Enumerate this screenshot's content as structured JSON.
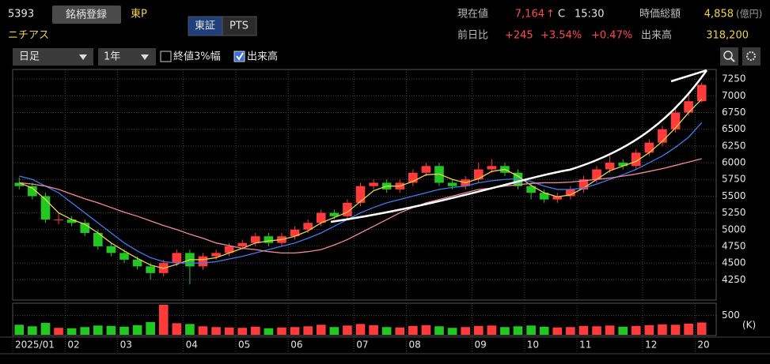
{
  "header": {
    "code": "5393",
    "register": "銘柄登録",
    "market": "東P",
    "name": "ニチアス",
    "exchange": "東証",
    "pts": "PTS",
    "price_label": "現在値",
    "price": "7,164",
    "arrow": "↑",
    "close_mark": "C",
    "time": "15:30",
    "cap_label": "時価総額",
    "cap": "4,858",
    "cap_unit": "(億円)",
    "change_label": "前日比",
    "change": "+245",
    "change_pct": "+3.54%",
    "change_pct2": "+0.47%",
    "volume_label": "出来高",
    "volume": "318,200"
  },
  "toolbar": {
    "period": "日足",
    "range": "1年",
    "band": "終値3%幅",
    "show_volume": "出来高"
  },
  "chart_data": {
    "type": "candlestick",
    "categories": [
      "2025/01",
      null,
      null,
      null,
      "02",
      null,
      null,
      null,
      "03",
      null,
      null,
      null,
      null,
      "04",
      null,
      null,
      null,
      "05",
      null,
      null,
      null,
      "06",
      null,
      null,
      null,
      null,
      "07",
      null,
      null,
      null,
      "08",
      null,
      null,
      null,
      null,
      "09",
      null,
      null,
      null,
      "10",
      null,
      null,
      null,
      "11",
      null,
      null,
      null,
      null,
      "12",
      null,
      null,
      null,
      "20"
    ],
    "candles": {
      "open": [
        5700,
        5650,
        5500,
        5150,
        5150,
        5100,
        4950,
        4750,
        4650,
        4550,
        4450,
        4350,
        4500,
        4650,
        4450,
        4600,
        4650,
        4750,
        4800,
        4900,
        4800,
        4900,
        5000,
        5100,
        5250,
        5200,
        5400,
        5650,
        5700,
        5600,
        5700,
        5850,
        5950,
        5700,
        5650,
        5750,
        5900,
        5950,
        5850,
        5650,
        5550,
        5450,
        5500,
        5600,
        5750,
        5900,
        6000,
        5950,
        6150,
        6300,
        6500,
        6750,
        6919
      ],
      "high": [
        5780,
        5700,
        5550,
        5250,
        5200,
        5150,
        5000,
        4800,
        4700,
        4600,
        4500,
        4550,
        4700,
        4700,
        4650,
        4700,
        4800,
        4850,
        4950,
        4950,
        4950,
        5050,
        5150,
        5300,
        5300,
        5450,
        5700,
        5750,
        5750,
        5750,
        5900,
        6000,
        6000,
        5750,
        5800,
        6000,
        6050,
        6000,
        5900,
        5700,
        5600,
        5550,
        5650,
        5800,
        5950,
        6100,
        6050,
        6200,
        6350,
        6550,
        6800,
        7050,
        7200
      ],
      "low": [
        5600,
        5450,
        5100,
        5080,
        5050,
        4900,
        4700,
        4600,
        4500,
        4400,
        4250,
        4300,
        4450,
        4180,
        4400,
        4550,
        4600,
        4700,
        4750,
        4750,
        4750,
        4850,
        4950,
        5050,
        5150,
        5150,
        5350,
        5600,
        5550,
        5550,
        5650,
        5800,
        5650,
        5600,
        5600,
        5700,
        5850,
        5800,
        5600,
        5450,
        5400,
        5400,
        5450,
        5550,
        5700,
        5850,
        5900,
        5900,
        6100,
        6250,
        6450,
        6700,
        6900
      ],
      "close": [
        5650,
        5500,
        5150,
        5150,
        5100,
        4950,
        4750,
        4650,
        4550,
        4450,
        4350,
        4500,
        4650,
        4450,
        4600,
        4650,
        4750,
        4800,
        4900,
        4800,
        4900,
        5000,
        5100,
        5250,
        5200,
        5400,
        5650,
        5700,
        5600,
        5700,
        5850,
        5950,
        5700,
        5650,
        5750,
        5900,
        5950,
        5850,
        5650,
        5550,
        5450,
        5500,
        5600,
        5750,
        5900,
        6000,
        5950,
        6150,
        6300,
        6500,
        6750,
        6919,
        7164
      ]
    },
    "up_color": "#ff3b3b",
    "down_color": "#22c722",
    "ma": [
      {
        "color": "#e8d44d",
        "values": [
          5700,
          5620,
          5450,
          5250,
          5150,
          5080,
          4950,
          4800,
          4680,
          4570,
          4470,
          4420,
          4480,
          4550,
          4550,
          4580,
          4650,
          4720,
          4800,
          4830,
          4850,
          4900,
          4980,
          5100,
          5180,
          5260,
          5420,
          5580,
          5650,
          5650,
          5720,
          5820,
          5830,
          5750,
          5700,
          5760,
          5870,
          5900,
          5800,
          5660,
          5550,
          5490,
          5520,
          5620,
          5750,
          5880,
          5950,
          6020,
          6150,
          6320,
          6520,
          6750,
          6950
        ]
      },
      {
        "color": "#3d7cf0",
        "values": [
          5800,
          5750,
          5650,
          5550,
          5400,
          5250,
          5100,
          4950,
          4800,
          4680,
          4580,
          4520,
          4500,
          4500,
          4500,
          4520,
          4560,
          4600,
          4650,
          4700,
          4750,
          4800,
          4870,
          4950,
          5050,
          5150,
          5250,
          5330,
          5400,
          5450,
          5500,
          5550,
          5600,
          5630,
          5650,
          5700,
          5730,
          5750,
          5760,
          5720,
          5650,
          5600,
          5600,
          5620,
          5680,
          5750,
          5820,
          5900,
          6000,
          6100,
          6230,
          6380,
          6600
        ]
      },
      {
        "color": "#f08a9a",
        "values": [
          5700,
          5680,
          5650,
          5600,
          5530,
          5460,
          5400,
          5330,
          5260,
          5200,
          5130,
          5060,
          5000,
          4930,
          4870,
          4800,
          4760,
          4720,
          4700,
          4670,
          4650,
          4650,
          4670,
          4700,
          4770,
          4850,
          4950,
          5050,
          5150,
          5250,
          5330,
          5400,
          5450,
          5500,
          5550,
          5600,
          5620,
          5650,
          5670,
          5690,
          5700,
          5700,
          5710,
          5730,
          5750,
          5770,
          5800,
          5830,
          5870,
          5910,
          5960,
          6010,
          6060
        ]
      }
    ],
    "volume": {
      "axis": "y2",
      "values": [
        260,
        220,
        310,
        180,
        170,
        200,
        240,
        230,
        210,
        250,
        330,
        780,
        300,
        280,
        220,
        200,
        190,
        180,
        210,
        170,
        190,
        200,
        220,
        260,
        200,
        240,
        280,
        250,
        200,
        190,
        230,
        250,
        220,
        180,
        200,
        230,
        240,
        200,
        220,
        240,
        210,
        190,
        200,
        230,
        220,
        240,
        210,
        230,
        250,
        270,
        260,
        290,
        318.2
      ]
    },
    "ylim": [
      3970,
      7370
    ],
    "yticks": [
      4250,
      4500,
      4750,
      5000,
      5250,
      5500,
      5750,
      6000,
      6250,
      6500,
      6750,
      7000,
      7250
    ],
    "y2lim": [
      0,
      820
    ],
    "y2ticks": [
      500
    ],
    "y2_unit": "(K)",
    "grid": true
  }
}
